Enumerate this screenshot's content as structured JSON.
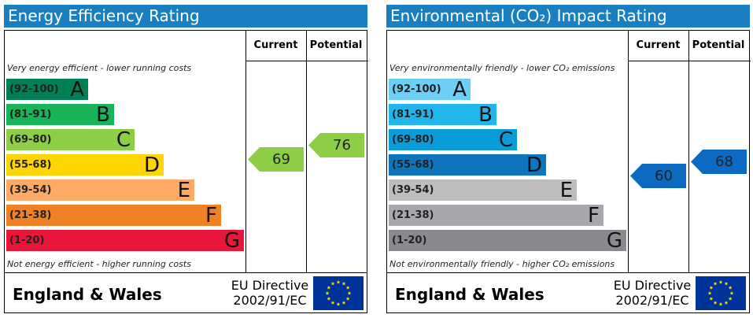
{
  "panels": [
    {
      "title": "Energy Efficiency Rating",
      "current_label": "Current",
      "potential_label": "Potential",
      "top_note": "Very energy efficient - lower running costs",
      "bottom_note": "Not energy efficient - higher running costs",
      "region": "England & Wales",
      "directive_line1": "EU Directive",
      "directive_line2": "2002/91/EC",
      "bands": [
        {
          "range": "(92-100)",
          "letter": "A",
          "color": "#008054"
        },
        {
          "range": "(81-91)",
          "letter": "B",
          "color": "#19b459"
        },
        {
          "range": "(69-80)",
          "letter": "C",
          "color": "#8dce46"
        },
        {
          "range": "(55-68)",
          "letter": "D",
          "color": "#ffd500"
        },
        {
          "range": "(39-54)",
          "letter": "E",
          "color": "#fcaa65"
        },
        {
          "range": "(21-38)",
          "letter": "F",
          "color": "#ef8023"
        },
        {
          "range": "(1-20)",
          "letter": "G",
          "color": "#e9153b"
        }
      ],
      "current": {
        "value": 69,
        "band": "C",
        "color": "#8dce46",
        "text_color": "#222222"
      },
      "potential": {
        "value": 76,
        "band": "C",
        "color": "#8dce46",
        "text_color": "#222222"
      }
    },
    {
      "title": "Environmental (CO₂) Impact Rating",
      "current_label": "Current",
      "potential_label": "Potential",
      "top_note": "Very environmentally friendly - lower CO₂ emissions",
      "bottom_note": "Not environmentally friendly - higher CO₂ emissions",
      "region": "England & Wales",
      "directive_line1": "EU Directive",
      "directive_line2": "2002/91/EC",
      "bands": [
        {
          "range": "(92-100)",
          "letter": "A",
          "color": "#6ecff6"
        },
        {
          "range": "(81-91)",
          "letter": "B",
          "color": "#22b5eb"
        },
        {
          "range": "(69-80)",
          "letter": "C",
          "color": "#0a9cd8"
        },
        {
          "range": "(55-68)",
          "letter": "D",
          "color": "#0c75bb"
        },
        {
          "range": "(39-54)",
          "letter": "E",
          "color": "#bbbdbf"
        },
        {
          "range": "(21-38)",
          "letter": "F",
          "color": "#a6a8ab"
        },
        {
          "range": "(1-20)",
          "letter": "G",
          "color": "#898a8d"
        }
      ],
      "current": {
        "value": 60,
        "band": "D",
        "color": "#0c6ac2",
        "text_color": "#222222"
      },
      "potential": {
        "value": 68,
        "band": "D",
        "color": "#0c6ac2",
        "text_color": "#222222"
      }
    }
  ],
  "chart_data": {
    "type": "table",
    "charts": [
      {
        "title": "Energy Efficiency Rating",
        "categories": [
          "A",
          "B",
          "C",
          "D",
          "E",
          "F",
          "G"
        ],
        "ranges": [
          "(92-100)",
          "(81-91)",
          "(69-80)",
          "(55-68)",
          "(39-54)",
          "(21-38)",
          "(1-20)"
        ],
        "current": 69,
        "potential": 76
      },
      {
        "title": "Environmental (CO₂) Impact Rating",
        "categories": [
          "A",
          "B",
          "C",
          "D",
          "E",
          "F",
          "G"
        ],
        "ranges": [
          "(92-100)",
          "(81-91)",
          "(69-80)",
          "(55-68)",
          "(39-54)",
          "(21-38)",
          "(1-20)"
        ],
        "current": 60,
        "potential": 68
      }
    ]
  }
}
